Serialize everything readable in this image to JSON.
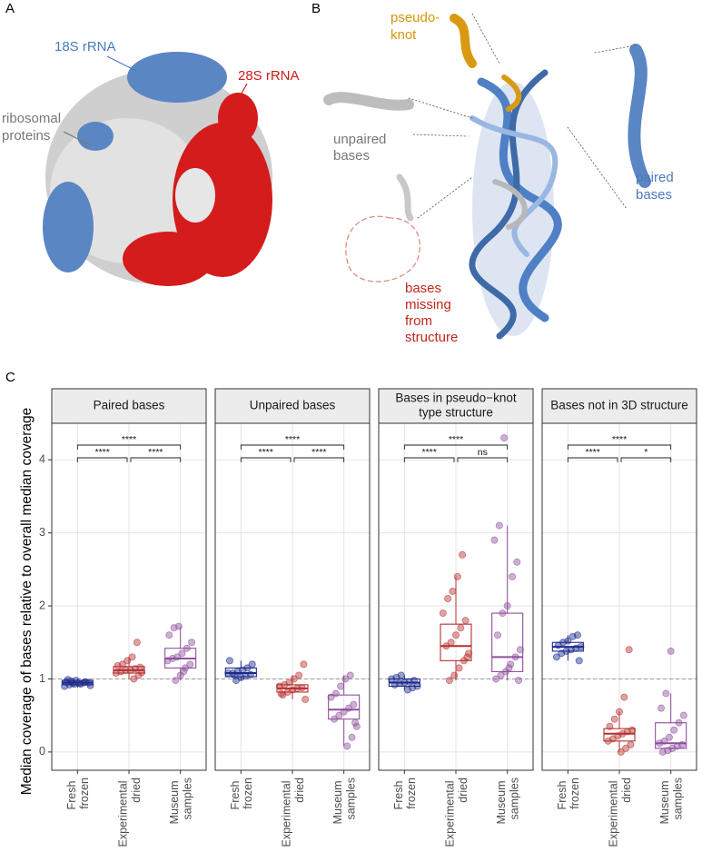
{
  "panel_a": {
    "label": "A",
    "rrna_18s": "18S rRNA",
    "rrna_28s": "28S rRNA",
    "proteins": [
      "ribosomal",
      "proteins"
    ]
  },
  "panel_b": {
    "label": "B",
    "pseudoknot": [
      "pseudo-",
      "knot"
    ],
    "unpaired": [
      "unpaired",
      "bases"
    ],
    "paired": [
      "paired",
      "bases"
    ],
    "missing": [
      "bases",
      "missing",
      "from",
      "structure"
    ]
  },
  "panel_c": {
    "label": "C",
    "ylabel": "Median coverage of bases relative to overall median coverage"
  },
  "chart_data": [
    {
      "type": "box",
      "title_lines": [
        "Paired bases"
      ],
      "categories": [
        "Fresh frozen",
        "Experimental dried",
        "Museum samples"
      ],
      "colors": [
        "#1c2a8c",
        "#b5302f",
        "#8e4f9e"
      ],
      "ylim": [
        -0.25,
        4.5
      ],
      "yticks": [
        0,
        1,
        2,
        3,
        4
      ],
      "grid": true,
      "hline": 1,
      "signif": [
        "****",
        "****",
        "****"
      ],
      "boxes": [
        {
          "low": 0.88,
          "q1": 0.92,
          "median": 0.95,
          "q3": 0.98,
          "high": 1.0
        },
        {
          "low": 1.0,
          "q1": 1.08,
          "median": 1.12,
          "q3": 1.17,
          "high": 1.3
        },
        {
          "low": 0.98,
          "q1": 1.15,
          "median": 1.28,
          "q3": 1.42,
          "high": 1.72
        }
      ],
      "points": [
        [
          0.9,
          0.92,
          0.93,
          0.94,
          0.95,
          0.95,
          0.96,
          0.97,
          0.98,
          0.93,
          0.96,
          0.91,
          0.99,
          0.94
        ],
        [
          1.0,
          1.05,
          1.08,
          1.1,
          1.12,
          1.12,
          1.14,
          1.16,
          1.18,
          1.2,
          1.25,
          1.3,
          1.5,
          1.09
        ],
        [
          0.98,
          1.05,
          1.15,
          1.2,
          1.25,
          1.28,
          1.3,
          1.35,
          1.42,
          1.5,
          1.6,
          1.7,
          1.72,
          1.1
        ]
      ]
    },
    {
      "type": "box",
      "title_lines": [
        "Unpaired bases"
      ],
      "categories": [
        "Fresh frozen",
        "Experimental dried",
        "Museum samples"
      ],
      "colors": [
        "#1c2a8c",
        "#b5302f",
        "#8e4f9e"
      ],
      "ylim": [
        -0.25,
        4.5
      ],
      "yticks": [
        0,
        1,
        2,
        3,
        4
      ],
      "grid": true,
      "hline": 1,
      "signif": [
        "****",
        "****",
        "****"
      ],
      "boxes": [
        {
          "low": 0.98,
          "q1": 1.03,
          "median": 1.08,
          "q3": 1.15,
          "high": 1.25
        },
        {
          "low": 0.72,
          "q1": 0.82,
          "median": 0.87,
          "q3": 0.92,
          "high": 1.05
        },
        {
          "low": 0.08,
          "q1": 0.45,
          "median": 0.58,
          "q3": 0.78,
          "high": 1.05
        }
      ],
      "points": [
        [
          0.98,
          1.02,
          1.04,
          1.06,
          1.08,
          1.08,
          1.1,
          1.12,
          1.15,
          1.2,
          1.25,
          1.05
        ],
        [
          0.72,
          0.78,
          0.82,
          0.85,
          0.87,
          0.88,
          0.9,
          0.92,
          0.95,
          1.0,
          1.05,
          1.2,
          0.8
        ],
        [
          0.08,
          0.2,
          0.35,
          0.45,
          0.5,
          0.55,
          0.6,
          0.65,
          0.75,
          0.8,
          0.9,
          1.0,
          1.05,
          0.4
        ]
      ]
    },
    {
      "type": "box",
      "title_lines": [
        "Bases in pseudo−knot",
        "type structure"
      ],
      "categories": [
        "Fresh frozen",
        "Experimental dried",
        "Museum samples"
      ],
      "colors": [
        "#1c2a8c",
        "#b5302f",
        "#8e4f9e"
      ],
      "ylim": [
        -0.25,
        4.5
      ],
      "yticks": [
        0,
        1,
        2,
        3,
        4
      ],
      "grid": true,
      "hline": 1,
      "signif": [
        "****",
        "ns",
        "****"
      ],
      "boxes": [
        {
          "low": 0.85,
          "q1": 0.9,
          "median": 0.95,
          "q3": 1.0,
          "high": 1.05
        },
        {
          "low": 0.98,
          "q1": 1.25,
          "median": 1.45,
          "q3": 1.75,
          "high": 2.4
        },
        {
          "low": 0.98,
          "q1": 1.1,
          "median": 1.3,
          "q3": 1.9,
          "high": 3.1
        }
      ],
      "points": [
        [
          0.85,
          0.88,
          0.9,
          0.92,
          0.94,
          0.95,
          0.96,
          0.98,
          1.0,
          1.02,
          1.05
        ],
        [
          0.98,
          1.05,
          1.15,
          1.25,
          1.35,
          1.45,
          1.5,
          1.6,
          1.7,
          1.8,
          1.9,
          2.1,
          2.2,
          2.4,
          2.7,
          1.3
        ],
        [
          0.98,
          1.0,
          1.05,
          1.1,
          1.2,
          1.3,
          1.4,
          1.6,
          1.9,
          2.0,
          2.4,
          2.6,
          2.9,
          3.1,
          4.3,
          1.15
        ]
      ]
    },
    {
      "type": "box",
      "title_lines": [
        "Bases not in 3D structure"
      ],
      "categories": [
        "Fresh frozen",
        "Experimental dried",
        "Museum samples"
      ],
      "colors": [
        "#1c2a8c",
        "#b5302f",
        "#8e4f9e"
      ],
      "ylim": [
        -0.25,
        4.5
      ],
      "yticks": [
        0,
        1,
        2,
        3,
        4
      ],
      "grid": true,
      "hline": 1,
      "signif": [
        "****",
        "*",
        "****"
      ],
      "boxes": [
        {
          "low": 1.25,
          "q1": 1.38,
          "median": 1.44,
          "q3": 1.5,
          "high": 1.6
        },
        {
          "low": 0.0,
          "q1": 0.15,
          "median": 0.25,
          "q3": 0.32,
          "high": 0.55
        },
        {
          "low": 0.0,
          "q1": 0.05,
          "median": 0.12,
          "q3": 0.4,
          "high": 0.8
        }
      ],
      "points": [
        [
          1.25,
          1.3,
          1.35,
          1.38,
          1.4,
          1.42,
          1.44,
          1.46,
          1.5,
          1.52,
          1.58,
          1.6
        ],
        [
          0.0,
          0.05,
          0.1,
          0.15,
          0.18,
          0.22,
          0.25,
          0.28,
          0.3,
          0.35,
          0.45,
          0.55,
          0.75,
          1.4
        ],
        [
          0.0,
          0.02,
          0.05,
          0.08,
          0.1,
          0.12,
          0.15,
          0.2,
          0.3,
          0.4,
          0.5,
          0.6,
          0.8,
          1.38
        ]
      ]
    }
  ]
}
